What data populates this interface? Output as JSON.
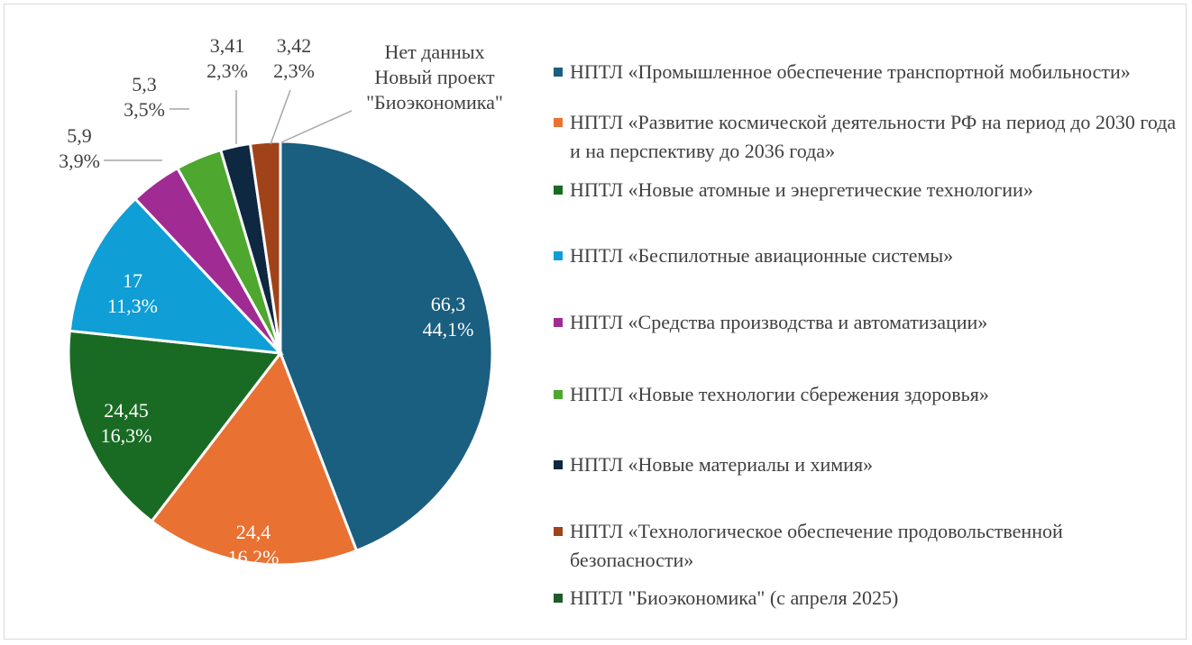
{
  "chart_data": {
    "type": "pie",
    "categories": [
      "НПТЛ «Промышленное обеспечение транспортной мобильности»",
      "НПТЛ «Развитие космической деятельности РФ на период до 2030 года и на перспективу до 2036 года»",
      "НПТЛ «Новые атомные и энергетические технологии»",
      "НПТЛ «Беспилотные авиационные системы»",
      "НПТЛ «Средства производства и автоматизации»",
      "НПТЛ «Новые технологии сбережения здоровья»",
      "НПТЛ «Новые материалы и химия»",
      "НПТЛ «Технологическое обеспечение продовольственной безопасности»",
      "НПТЛ \"Биоэкономика\" (с апреля 2025)"
    ],
    "values": [
      66.3,
      24.4,
      24.45,
      17,
      5.9,
      5.3,
      3.41,
      3.42,
      null
    ],
    "value_labels": [
      "66,3",
      "24,4",
      "24,45",
      "17",
      "5,9",
      "5,3",
      "3,41",
      "3,42",
      "Нет данных"
    ],
    "percent_labels": [
      "44,1%",
      "16,2%",
      "16,3%",
      "11,3%",
      "3,9%",
      "3,5%",
      "2,3%",
      "2,3%",
      null
    ],
    "annotations": [
      "Новый проект",
      "\"Биоэкономика\""
    ],
    "colors": [
      "#1a5e80",
      "#e97132",
      "#196b24",
      "#0f9ed5",
      "#a02b93",
      "#4ea72e",
      "#0e2841",
      "#a0431a",
      "#1f5c2a"
    ],
    "legend": "right"
  }
}
